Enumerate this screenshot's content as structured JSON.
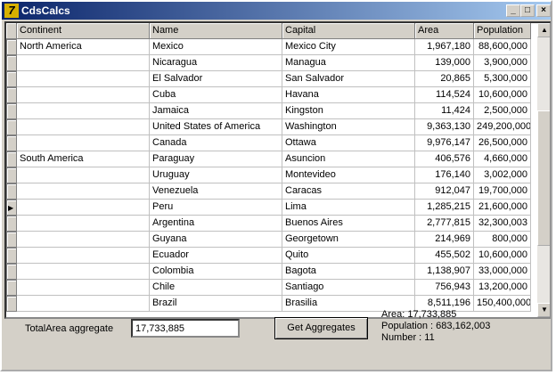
{
  "window": {
    "title": "CdsCalcs"
  },
  "grid": {
    "columns": [
      "Continent",
      "Name",
      "Capital",
      "Area",
      "Population"
    ],
    "rows": [
      {
        "continent": "North America",
        "name": "Mexico",
        "capital": "Mexico City",
        "area": "1,967,180",
        "population": "88,600,000"
      },
      {
        "name": "Nicaragua",
        "capital": "Managua",
        "area": "139,000",
        "population": "3,900,000"
      },
      {
        "name": "El Salvador",
        "capital": "San Salvador",
        "area": "20,865",
        "population": "5,300,000"
      },
      {
        "name": "Cuba",
        "capital": "Havana",
        "area": "114,524",
        "population": "10,600,000"
      },
      {
        "name": "Jamaica",
        "capital": "Kingston",
        "area": "11,424",
        "population": "2,500,000"
      },
      {
        "name": "United States of America",
        "capital": "Washington",
        "area": "9,363,130",
        "population": "249,200,000"
      },
      {
        "name": "Canada",
        "capital": "Ottawa",
        "area": "9,976,147",
        "population": "26,500,000"
      },
      {
        "continent": "South America",
        "name": "Paraguay",
        "capital": "Asuncion",
        "area": "406,576",
        "population": "4,660,000"
      },
      {
        "name": "Uruguay",
        "capital": "Montevideo",
        "area": "176,140",
        "population": "3,002,000"
      },
      {
        "name": "Venezuela",
        "capital": "Caracas",
        "area": "912,047",
        "population": "19,700,000"
      },
      {
        "name": "Peru",
        "capital": "Lima",
        "area": "1,285,215",
        "population": "21,600,000"
      },
      {
        "name": "Argentina",
        "capital": "Buenos Aires",
        "area": "2,777,815",
        "population": "32,300,003"
      },
      {
        "name": "Guyana",
        "capital": "Georgetown",
        "area": "214,969",
        "population": "800,000"
      },
      {
        "name": "Ecuador",
        "capital": "Quito",
        "area": "455,502",
        "population": "10,600,000"
      },
      {
        "name": "Colombia",
        "capital": "Bagota",
        "area": "1,138,907",
        "population": "33,000,000"
      },
      {
        "name": "Chile",
        "capital": "Santiago",
        "area": "756,943",
        "population": "13,200,000"
      },
      {
        "name": "Brazil",
        "capital": "Brasilia",
        "area": "8,511,196",
        "population": "150,400,000"
      }
    ]
  },
  "footer": {
    "label": "TotalArea aggregate",
    "input": "17,733,885",
    "button": "Get Aggregates",
    "results": [
      "Area: 17,733,885",
      "Population : 683,162,003",
      "Number : 11"
    ]
  }
}
